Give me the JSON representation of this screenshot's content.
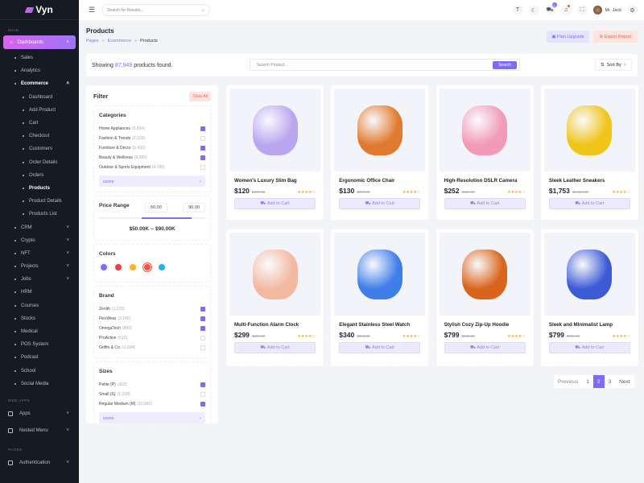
{
  "brand": "Vyn",
  "sidebar": {
    "main_label": "MAIN",
    "dashboards": "Dashboards",
    "items_top": [
      "Sales",
      "Analytics"
    ],
    "ecommerce": "Ecommerce",
    "ecommerce_items": [
      "Dashboard",
      "Add Product",
      "Cart",
      "Checkout",
      "Customers",
      "Order Details",
      "Orders",
      "Products",
      "Product Details",
      "Products List"
    ],
    "active": "Products",
    "items_expand": [
      "CRM",
      "Crypto",
      "NFT",
      "Projects",
      "Jobs"
    ],
    "items_plain": [
      "HRM",
      "Courses",
      "Stocks",
      "Medical",
      "POS System",
      "Podcast",
      "School",
      "Social Media"
    ],
    "webapps_label": "WEB APPS",
    "apps": "Apps",
    "nested": "Nested Menu",
    "pages_label": "PAGES",
    "auth": "Authentication"
  },
  "header": {
    "search_placeholder": "Search for Results...",
    "cart_count": "5",
    "user": "Mr. Jack"
  },
  "page": {
    "title": "Products",
    "breadcrumb": [
      "Pages",
      "Ecommerce",
      "Products"
    ],
    "plan_upgrade": "Plan Upgrade",
    "export_report": "Export Report"
  },
  "toolbar": {
    "showing": "Showing",
    "count": "87,949",
    "found": "products found.",
    "search_placeholder": "Search Product...",
    "search_btn": "Search",
    "sort": "Sort By"
  },
  "filter": {
    "title": "Filter",
    "clear": "Clear All",
    "categories_title": "Categories",
    "categories": [
      {
        "name": "Home Appliances",
        "count": "(5,894)",
        "checked": true
      },
      {
        "name": "Fashion & Trends",
        "count": "(3,120)",
        "checked": false
      },
      {
        "name": "Furniture & Decor",
        "count": "(9,432)",
        "checked": true
      },
      {
        "name": "Beauty & Wellness",
        "count": "(6,589)",
        "checked": true
      },
      {
        "name": "Outdoor & Sports Equipment",
        "count": "(4,786)",
        "checked": false
      }
    ],
    "more": "MORE",
    "price_title": "Price Range",
    "price_min": "50.00",
    "price_max": "90.00",
    "price_display": "$50.00K -- $90.00K",
    "colors_title": "Colors",
    "colors": [
      "#7d6cf5",
      "#f03e3e",
      "#fbb41f",
      "#f5533d",
      "#24b3e8"
    ],
    "selected_color": "#f5533d",
    "brand_title": "Brand",
    "brands": [
      {
        "name": "Zenith",
        "count": "(1,223)",
        "checked": true
      },
      {
        "name": "FlexWear",
        "count": "(3,145)",
        "checked": true
      },
      {
        "name": "OmegaTech",
        "count": "(895)",
        "checked": true
      },
      {
        "name": "ProActive",
        "count": "(512)",
        "checked": false
      },
      {
        "name": "Griffin & Co.",
        "count": "(1,894)",
        "checked": false
      }
    ],
    "sizes_title": "Sizes",
    "sizes": [
      {
        "name": "Petite (P)",
        "count": "(432)",
        "checked": true
      },
      {
        "name": "Small (S)",
        "count": "(1,218)",
        "checked": false
      },
      {
        "name": "Regular Medium (M)",
        "count": "(10,842)",
        "checked": true
      }
    ]
  },
  "products": [
    {
      "name": "Women's Luxury Slim Bag",
      "price": "$120",
      "old": "$160.00",
      "rating": 4,
      "color": "#b9a6f0"
    },
    {
      "name": "Ergonomic Office Chair",
      "price": "$130",
      "old": "$200.00",
      "rating": 4,
      "color": "#e07a2e"
    },
    {
      "name": "High-Resolution DSLR Camera",
      "price": "$252",
      "old": "$320.00",
      "rating": 4,
      "color": "#f29ab8"
    },
    {
      "name": "Sleek Leather Sneakers",
      "price": "$1,753",
      "old": "$2,254.00",
      "rating": 4,
      "color": "#f0c419"
    },
    {
      "name": "Multi-Function Alarm Clock",
      "price": "$299",
      "old": "$399.00",
      "rating": 4,
      "color": "#f3b9a0"
    },
    {
      "name": "Elegant Stainless Steel Watch",
      "price": "$340",
      "old": "$390.00",
      "rating": 4,
      "color": "#3f7ee8"
    },
    {
      "name": "Stylish Cozy Zip-Up Hoodie",
      "price": "$799",
      "old": "$899.00",
      "rating": 4,
      "color": "#d9641c"
    },
    {
      "name": "Sleek and Minimalist Lamp",
      "price": "$799",
      "old": "$899.00",
      "rating": 4,
      "color": "#3d5bd6"
    }
  ],
  "add_to_cart": "Add to Cart",
  "pagination": {
    "prev": "Previous",
    "pages": [
      "1",
      "2",
      "3"
    ],
    "current": "2",
    "next": "Next"
  }
}
